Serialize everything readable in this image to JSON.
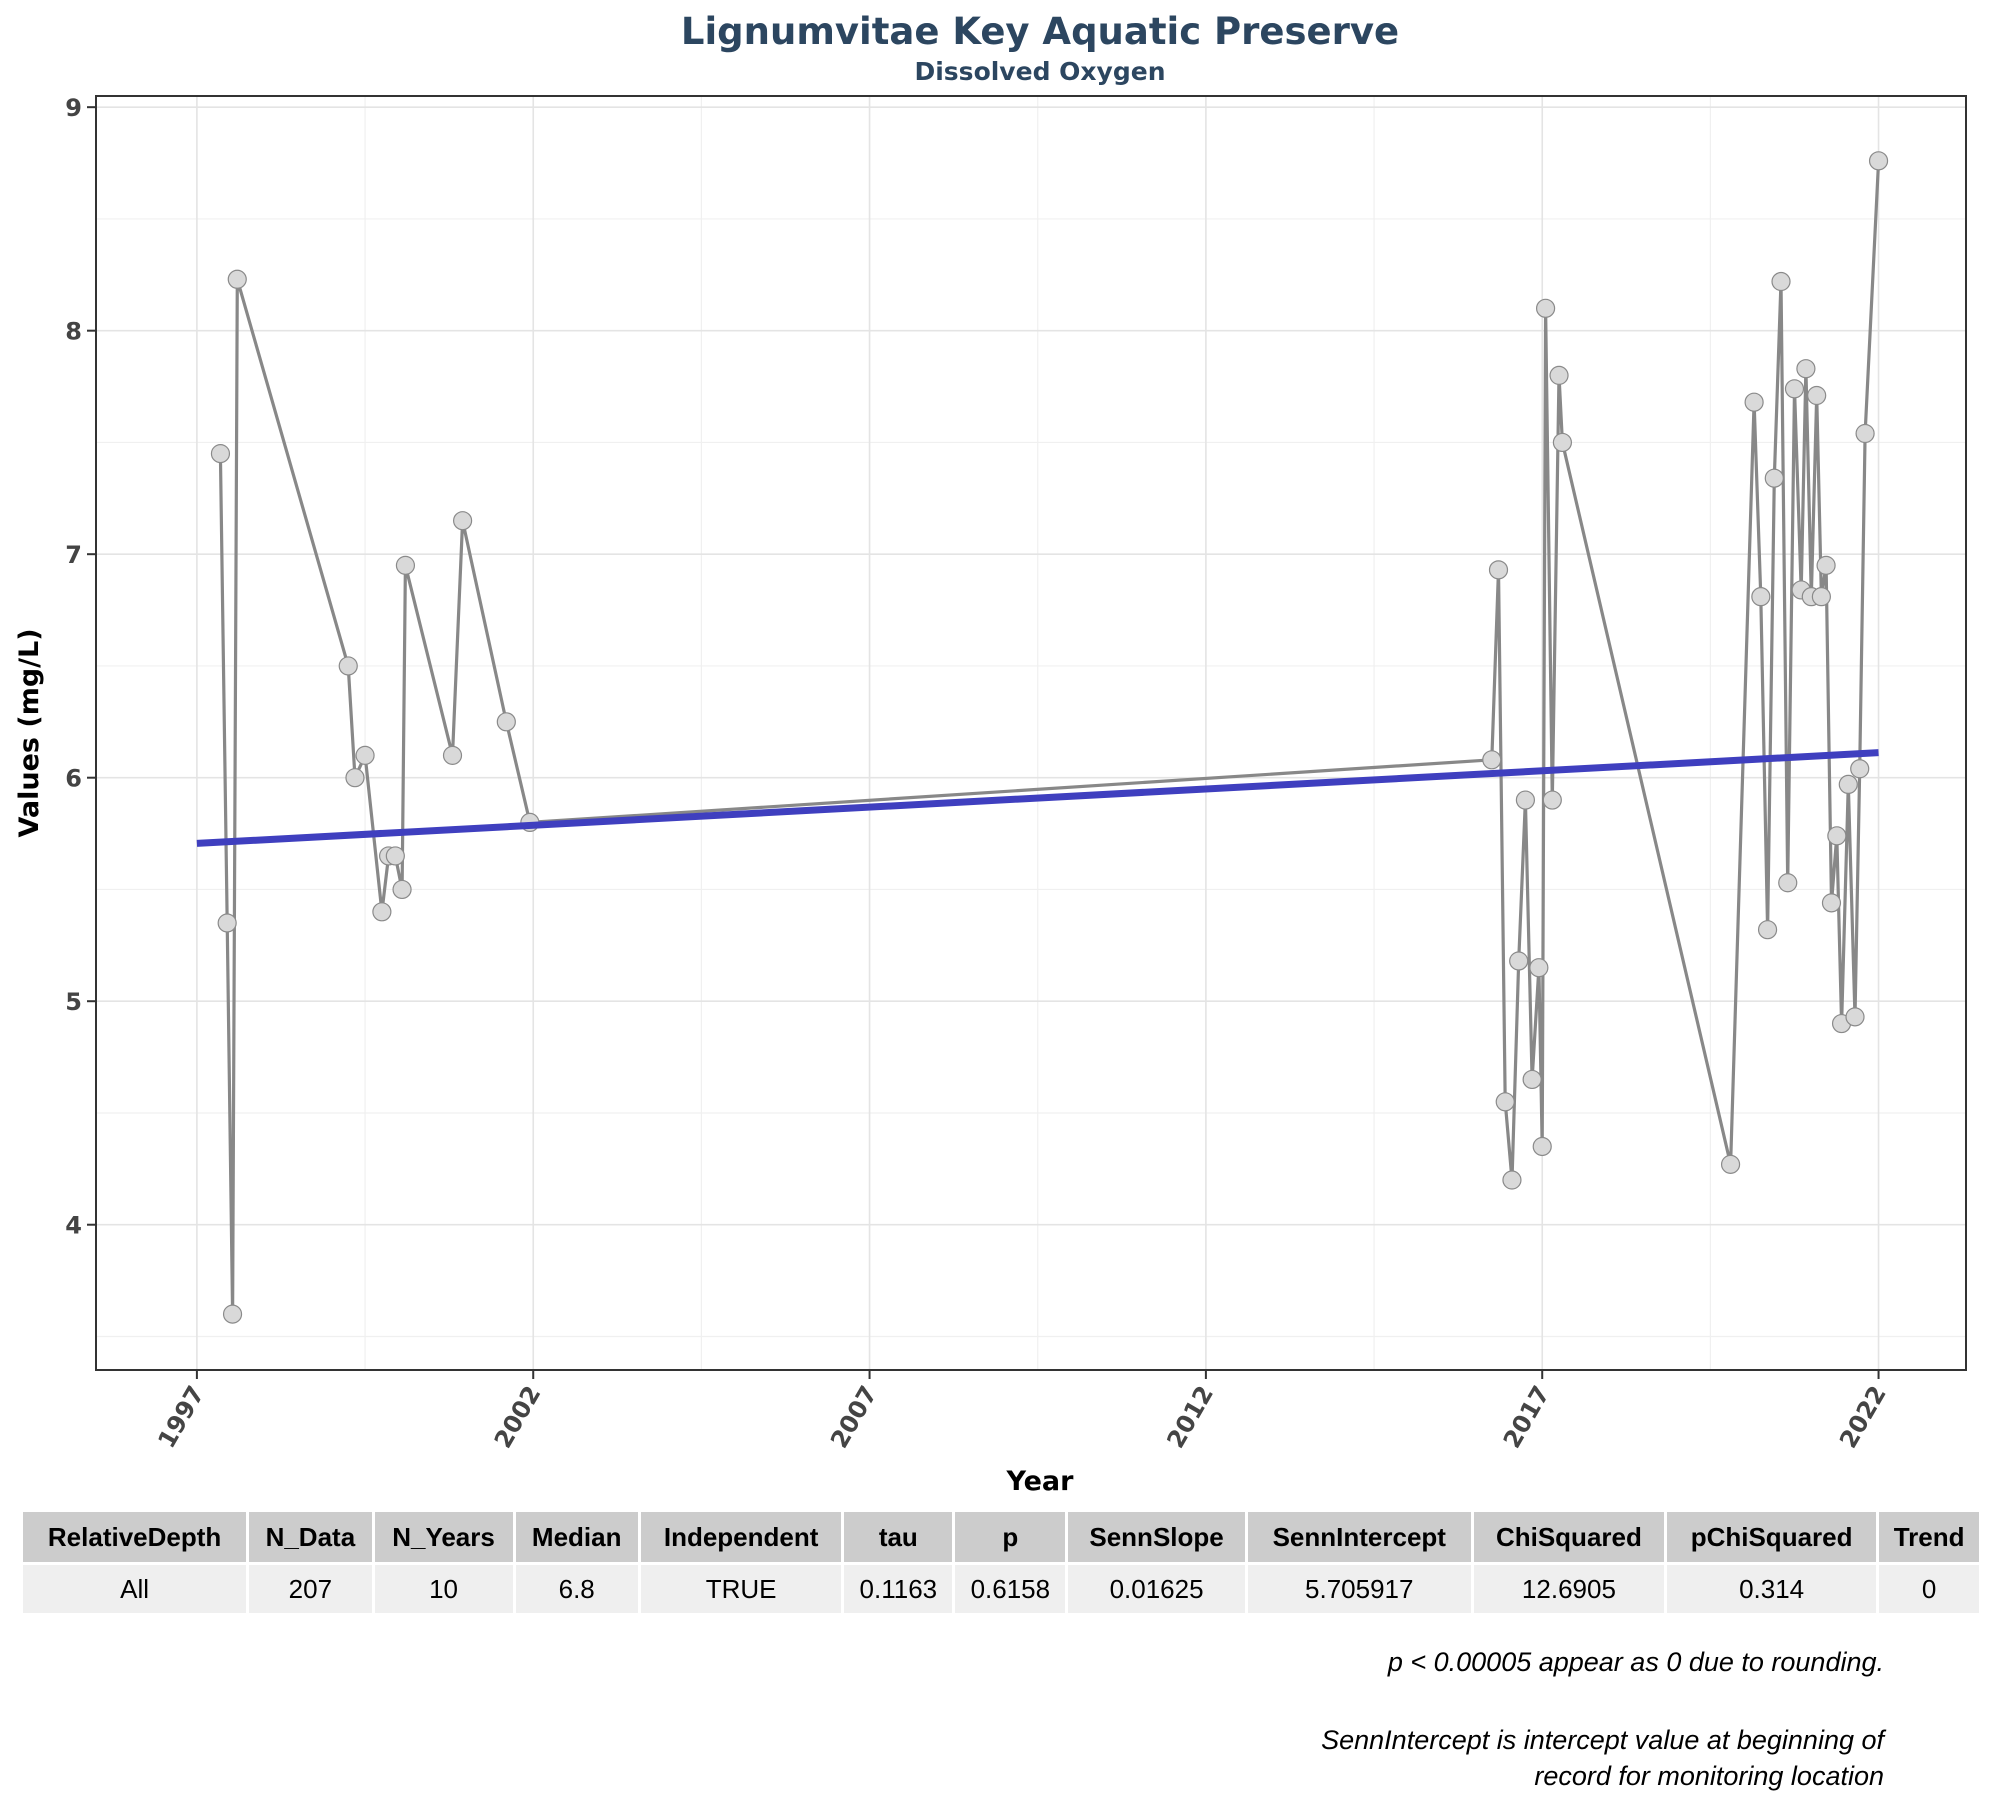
{
  "chart_data": {
    "type": "line",
    "title": "Lignumvitae Key Aquatic Preserve",
    "subtitle": "Dissolved Oxygen",
    "xlabel": "Year",
    "ylabel": "Values (mg/L)",
    "xlim": [
      1995.5,
      2023.3
    ],
    "ylim": [
      3.35,
      9.05
    ],
    "x_ticks": [
      1997,
      2002,
      2007,
      2012,
      2017,
      2022
    ],
    "y_ticks": [
      4,
      5,
      6,
      7,
      8,
      9
    ],
    "grid": true,
    "colors": {
      "series_line": "#888888",
      "marker_fill": "#d9d9d9",
      "trend_line": "#3f3fbf",
      "title": "#2c4660"
    },
    "series": [
      {
        "x": [
          1997.35,
          1997.45,
          1997.53,
          1997.6,
          1999.25,
          1999.35,
          1999.5,
          1999.75,
          1999.85,
          1999.95,
          2000.05,
          2000.1,
          2000.8,
          2000.95,
          2001.6,
          2001.95,
          2016.25,
          2016.35,
          2016.45,
          2016.55,
          2016.65,
          2016.75,
          2016.85,
          2016.95,
          2017.0,
          2017.05,
          2017.15,
          2017.25,
          2017.3,
          2019.8,
          2020.15,
          2020.25,
          2020.35,
          2020.45,
          2020.55,
          2020.65,
          2020.75,
          2020.85,
          2020.92,
          2021.0,
          2021.08,
          2021.15,
          2021.22,
          2021.3,
          2021.38,
          2021.45,
          2021.55,
          2021.65,
          2021.72,
          2021.8,
          2022.0
        ],
        "y": [
          7.45,
          5.35,
          3.6,
          8.23,
          6.5,
          6.0,
          6.1,
          5.4,
          5.65,
          5.65,
          5.5,
          6.95,
          6.1,
          7.15,
          6.25,
          5.8,
          6.08,
          6.93,
          4.55,
          4.2,
          5.18,
          5.9,
          4.65,
          5.15,
          4.35,
          8.1,
          5.9,
          7.8,
          7.5,
          4.27,
          7.68,
          6.81,
          5.32,
          7.34,
          8.22,
          5.53,
          7.74,
          6.84,
          7.83,
          6.81,
          7.71,
          6.81,
          6.95,
          5.44,
          5.74,
          4.9,
          5.97,
          4.93,
          6.04,
          7.54,
          8.76
        ]
      }
    ],
    "trend": {
      "x": [
        1997.0,
        2022.0
      ],
      "y": [
        5.705917,
        6.112
      ]
    }
  },
  "table": {
    "headers": [
      "RelativeDepth",
      "N_Data",
      "N_Years",
      "Median",
      "Independent",
      "tau",
      "p",
      "SennSlope",
      "SennIntercept",
      "ChiSquared",
      "pChiSquared",
      "Trend"
    ],
    "rows": [
      [
        "All",
        "207",
        "10",
        "6.8",
        "TRUE",
        "0.1163",
        "0.6158",
        "0.01625",
        "5.705917",
        "12.6905",
        "0.314",
        "0"
      ]
    ]
  },
  "notes": {
    "note1": "p < 0.00005 appear as 0 due to rounding.",
    "note2": "SennIntercept is intercept value at beginning of record for monitoring location"
  }
}
